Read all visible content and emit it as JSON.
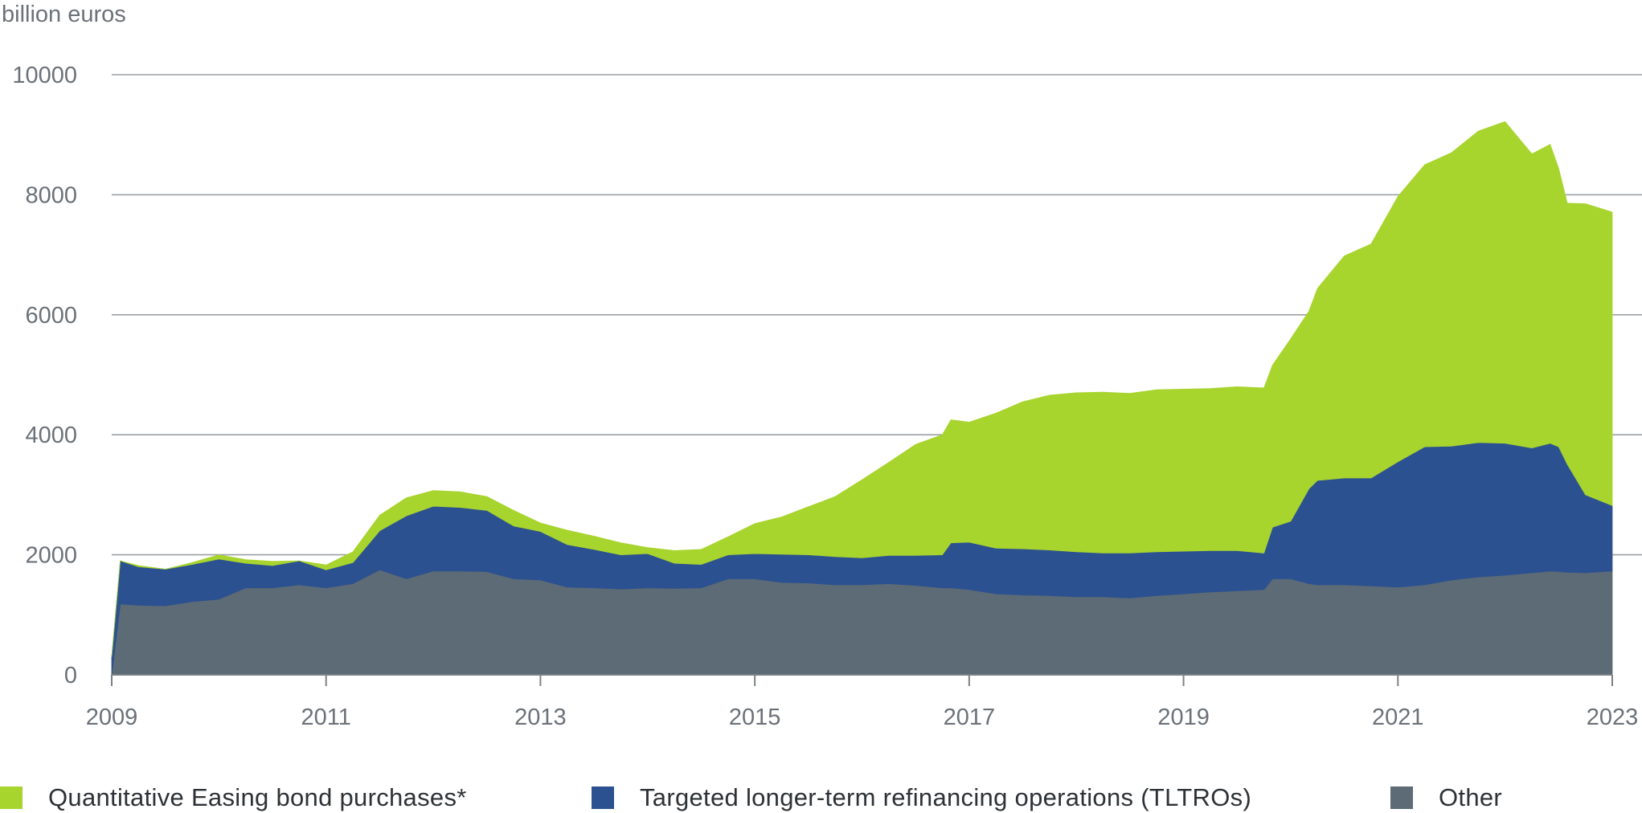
{
  "chart_data": {
    "type": "area",
    "stacked": true,
    "title": "",
    "ylabel": "billion euros",
    "xlabel": "",
    "ylim": [
      0,
      10000
    ],
    "xlim": [
      2009,
      2023
    ],
    "yticks": [
      0,
      2000,
      4000,
      6000,
      8000,
      10000
    ],
    "xticks": [
      "2009",
      "2011",
      "2013",
      "2015",
      "2017",
      "2019",
      "2021",
      "2023"
    ],
    "grid": "horizontal",
    "legend_position": "bottom",
    "x": [
      2009.0,
      2009.08,
      2009.25,
      2009.5,
      2009.75,
      2010.0,
      2010.25,
      2010.5,
      2010.75,
      2011.0,
      2011.25,
      2011.5,
      2011.75,
      2012.0,
      2012.25,
      2012.5,
      2012.75,
      2013.0,
      2013.25,
      2013.5,
      2013.75,
      2014.0,
      2014.25,
      2014.5,
      2014.75,
      2015.0,
      2015.25,
      2015.5,
      2015.75,
      2016.0,
      2016.25,
      2016.5,
      2016.75,
      2016.83,
      2017.0,
      2017.25,
      2017.5,
      2017.75,
      2018.0,
      2018.25,
      2018.5,
      2018.75,
      2019.0,
      2019.25,
      2019.5,
      2019.75,
      2019.83,
      2020.0,
      2020.17,
      2020.25,
      2020.5,
      2020.75,
      2021.0,
      2021.25,
      2021.5,
      2021.75,
      2022.0,
      2022.25,
      2022.42,
      2022.5,
      2022.58,
      2022.75,
      2023.0
    ],
    "series": [
      {
        "name": "Other",
        "color": "#5c6b76",
        "values": [
          0,
          1180,
          1160,
          1150,
          1220,
          1260,
          1450,
          1450,
          1500,
          1450,
          1520,
          1750,
          1600,
          1730,
          1730,
          1720,
          1600,
          1580,
          1460,
          1450,
          1430,
          1450,
          1440,
          1450,
          1600,
          1600,
          1540,
          1530,
          1500,
          1500,
          1520,
          1490,
          1450,
          1450,
          1420,
          1350,
          1330,
          1320,
          1300,
          1300,
          1280,
          1320,
          1350,
          1380,
          1400,
          1420,
          1600,
          1600,
          1520,
          1500,
          1500,
          1480,
          1460,
          1500,
          1580,
          1630,
          1660,
          1700,
          1730,
          1720,
          1710,
          1700,
          1730
        ]
      },
      {
        "name": "Targeted longer-term refinancing operations (TLTROs)",
        "color": "#2c5190",
        "values": [
          300,
          720,
          640,
          610,
          620,
          670,
          410,
          370,
          400,
          300,
          350,
          650,
          1050,
          1080,
          1060,
          1020,
          880,
          810,
          710,
          640,
          570,
          570,
          420,
          390,
          400,
          420,
          470,
          470,
          470,
          450,
          470,
          500,
          550,
          750,
          790,
          760,
          770,
          760,
          750,
          730,
          750,
          730,
          710,
          690,
          670,
          610,
          860,
          960,
          1580,
          1740,
          1780,
          1800,
          2090,
          2300,
          2230,
          2240,
          2200,
          2080,
          2130,
          2080,
          1800,
          1300,
          1090
        ]
      },
      {
        "name": "Quantitative Easing bond purchases*",
        "color": "#a8d42e",
        "values": [
          0,
          0,
          20,
          0,
          30,
          70,
          60,
          70,
          0,
          80,
          180,
          260,
          300,
          260,
          260,
          230,
          260,
          140,
          240,
          220,
          200,
          100,
          210,
          250,
          300,
          500,
          620,
          800,
          1000,
          1300,
          1550,
          1850,
          2000,
          2050,
          2000,
          2250,
          2450,
          2580,
          2650,
          2680,
          2660,
          2700,
          2700,
          2700,
          2730,
          2750,
          2700,
          3040,
          2960,
          3200,
          3700,
          3900,
          4420,
          4700,
          4890,
          5190,
          5360,
          4900,
          4980,
          4640,
          4350,
          4850,
          4890
        ]
      }
    ],
    "legend": [
      {
        "name": "Quantitative Easing bond purchases*",
        "color": "#a8d42e"
      },
      {
        "name": "Targeted longer-term refinancing operations (TLTROs)",
        "color": "#2c5190"
      },
      {
        "name": "Other",
        "color": "#5c6b76"
      }
    ],
    "colors": {
      "grid": "#9a9fa4",
      "axis": "#7c8287",
      "tick_text": "#6b7178"
    }
  }
}
